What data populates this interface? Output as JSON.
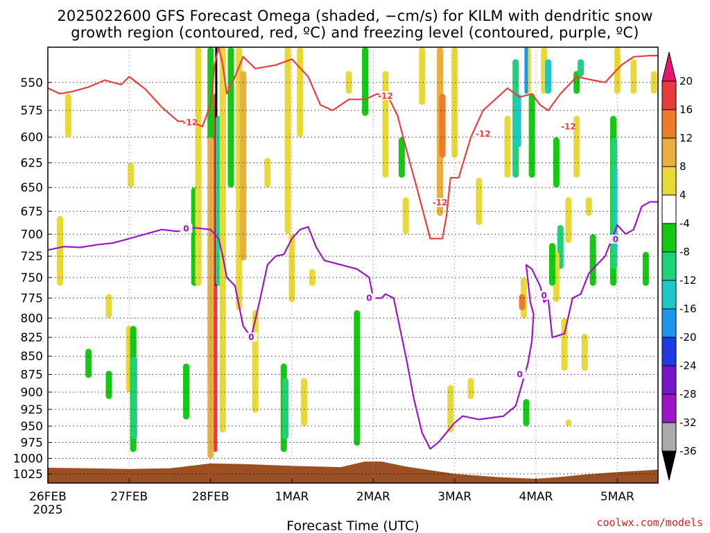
{
  "chart_data": {
    "type": "heatmap",
    "title_lines": [
      "2025022600 GFS Forecast Omega (shaded, −cm/s) for KILM with dendritic snow",
      "growth region (contoured, red, ºC) and freezing level (contoured, purple, ºC)"
    ],
    "xlabel": "Forecast Time (UTC)",
    "x_ticks": [
      "26FEB",
      "27FEB",
      "28FEB",
      "1MAR",
      "2MAR",
      "3MAR",
      "4MAR",
      "5MAR"
    ],
    "x_tick_sub": "2025",
    "y_ticks": [
      550,
      575,
      600,
      625,
      650,
      675,
      700,
      725,
      750,
      775,
      800,
      825,
      850,
      875,
      900,
      925,
      950,
      975,
      1000,
      1025
    ],
    "y_scale": "log-pressure",
    "ylim_hpa": [
      1040,
      520
    ],
    "xlim_days": [
      0,
      7.5
    ],
    "grid": true,
    "colorbar": {
      "labels": [
        "20",
        "16",
        "12",
        "8",
        "4",
        "-4",
        "-8",
        "-12",
        "-16",
        "-20",
        "-24",
        "-28",
        "-32",
        "-36"
      ],
      "colors": [
        "#e8146e",
        "#e83c3c",
        "#ec7c2a",
        "#e8b040",
        "#e8d838",
        "#ffffff",
        "#14c814",
        "#1ed27a",
        "#1ec8c8",
        "#1e96f0",
        "#1e3ce0",
        "#7814c8",
        "#9a14c8",
        "#aaaaaa",
        "#000000"
      ],
      "units": "-cm/s"
    },
    "series": [
      {
        "name": "dendritic snow growth region (-12)",
        "color": "#f03c3c",
        "points": [
          [
            0,
            555
          ],
          [
            0.15,
            560
          ],
          [
            0.3,
            558
          ],
          [
            0.5,
            554
          ],
          [
            0.7,
            548
          ],
          [
            0.9,
            552
          ],
          [
            1.0,
            545
          ],
          [
            1.2,
            556
          ],
          [
            1.4,
            572
          ],
          [
            1.6,
            585
          ],
          [
            1.75,
            585
          ],
          [
            1.9,
            590
          ],
          [
            2.0,
            570
          ],
          [
            2.05,
            535
          ],
          [
            2.1,
            520
          ],
          [
            2.15,
            535
          ],
          [
            2.2,
            560
          ],
          [
            2.3,
            545
          ],
          [
            2.4,
            528
          ],
          [
            2.55,
            538
          ],
          [
            2.8,
            535
          ],
          [
            3.0,
            530
          ],
          [
            3.2,
            545
          ],
          [
            3.35,
            570
          ],
          [
            3.5,
            575
          ],
          [
            3.7,
            565
          ],
          [
            3.9,
            565
          ],
          [
            4.05,
            560
          ],
          [
            4.2,
            565
          ],
          [
            4.3,
            580
          ],
          [
            4.4,
            610
          ],
          [
            4.55,
            655
          ],
          [
            4.7,
            705
          ],
          [
            4.85,
            705
          ],
          [
            4.9,
            680
          ],
          [
            4.95,
            640
          ],
          [
            5.05,
            640
          ],
          [
            5.2,
            600
          ],
          [
            5.35,
            575
          ],
          [
            5.5,
            565
          ],
          [
            5.65,
            555
          ],
          [
            5.8,
            563
          ],
          [
            5.95,
            560
          ],
          [
            6.05,
            570
          ],
          [
            6.15,
            575
          ],
          [
            6.3,
            560
          ],
          [
            6.5,
            545
          ],
          [
            6.7,
            548
          ],
          [
            6.85,
            550
          ],
          [
            7.05,
            535
          ],
          [
            7.2,
            528
          ],
          [
            7.4,
            527
          ],
          [
            7.5,
            527
          ]
        ],
        "labels": [
          {
            "day": 1.75,
            "hpa": 586,
            "text": "-12"
          },
          {
            "day": 4.15,
            "hpa": 562,
            "text": "-12"
          },
          {
            "day": 4.82,
            "hpa": 666,
            "text": "-12"
          },
          {
            "day": 5.35,
            "hpa": 597,
            "text": "-12"
          },
          {
            "day": 6.4,
            "hpa": 590,
            "text": "-12"
          }
        ]
      },
      {
        "name": "freezing level (0)",
        "color": "#9b14c8",
        "points": [
          [
            0,
            718
          ],
          [
            0.2,
            714
          ],
          [
            0.4,
            715
          ],
          [
            0.6,
            712
          ],
          [
            0.8,
            710
          ],
          [
            1.0,
            705
          ],
          [
            1.2,
            700
          ],
          [
            1.4,
            695
          ],
          [
            1.6,
            697
          ],
          [
            1.8,
            693
          ],
          [
            2.0,
            695
          ],
          [
            2.1,
            705
          ],
          [
            2.15,
            725
          ],
          [
            2.2,
            750
          ],
          [
            2.3,
            760
          ],
          [
            2.4,
            810
          ],
          [
            2.5,
            825
          ],
          [
            2.6,
            780
          ],
          [
            2.7,
            735
          ],
          [
            2.8,
            725
          ],
          [
            2.9,
            723
          ],
          [
            3.0,
            705
          ],
          [
            3.1,
            695
          ],
          [
            3.2,
            692
          ],
          [
            3.3,
            715
          ],
          [
            3.4,
            730
          ],
          [
            3.6,
            735
          ],
          [
            3.8,
            740
          ],
          [
            3.95,
            750
          ],
          [
            4.0,
            775
          ],
          [
            4.1,
            775
          ],
          [
            4.15,
            770
          ],
          [
            4.25,
            775
          ],
          [
            4.4,
            850
          ],
          [
            4.5,
            910
          ],
          [
            4.6,
            960
          ],
          [
            4.7,
            985
          ],
          [
            4.8,
            975
          ],
          [
            5.0,
            945
          ],
          [
            5.1,
            935
          ],
          [
            5.3,
            940
          ],
          [
            5.6,
            935
          ],
          [
            5.75,
            920
          ],
          [
            5.85,
            880
          ],
          [
            5.9,
            860
          ],
          [
            5.95,
            830
          ],
          [
            5.97,
            795
          ],
          [
            5.93,
            780
          ],
          [
            5.88,
            735
          ],
          [
            5.95,
            740
          ],
          [
            6.05,
            760
          ],
          [
            6.1,
            780
          ],
          [
            6.15,
            775
          ],
          [
            6.2,
            825
          ],
          [
            6.35,
            820
          ],
          [
            6.45,
            775
          ],
          [
            6.55,
            770
          ],
          [
            6.65,
            745
          ],
          [
            6.75,
            735
          ],
          [
            6.85,
            725
          ],
          [
            7.0,
            690
          ],
          [
            7.1,
            700
          ],
          [
            7.2,
            695
          ],
          [
            7.3,
            670
          ],
          [
            7.4,
            665
          ],
          [
            7.5,
            665
          ]
        ],
        "labels": [
          {
            "day": 1.7,
            "hpa": 694,
            "text": "0"
          },
          {
            "day": 2.5,
            "hpa": 825,
            "text": "0"
          },
          {
            "day": 3.95,
            "hpa": 775,
            "text": "0"
          },
          {
            "day": 5.8,
            "hpa": 875,
            "text": "0"
          },
          {
            "day": 6.1,
            "hpa": 772,
            "text": "0"
          },
          {
            "day": 6.98,
            "hpa": 706,
            "text": "0"
          }
        ]
      }
    ],
    "shaded_regions": [
      {
        "day": 0.25,
        "hpa": [
          560,
          600
        ],
        "v": 6
      },
      {
        "day": 0.15,
        "hpa": [
          680,
          760
        ],
        "v": 6
      },
      {
        "day": 1.02,
        "hpa": [
          625,
          650
        ],
        "v": 6
      },
      {
        "day": 0.75,
        "hpa": [
          870,
          910
        ],
        "v": -6
      },
      {
        "day": 0.75,
        "hpa": [
          770,
          800
        ],
        "v": 6
      },
      {
        "day": 1.0,
        "hpa": [
          810,
          900
        ],
        "v": 6
      },
      {
        "day": 1.05,
        "hpa": [
          810,
          990
        ],
        "v": -6
      },
      {
        "day": 1.06,
        "hpa": [
          850,
          970
        ],
        "v": -9
      },
      {
        "day": 0.5,
        "hpa": [
          840,
          880
        ],
        "v": -6
      },
      {
        "day": 1.8,
        "hpa": [
          650,
          760
        ],
        "v": -6
      },
      {
        "day": 1.85,
        "hpa": [
          520,
          760
        ],
        "v": 6
      },
      {
        "day": 1.7,
        "hpa": [
          860,
          940
        ],
        "v": -6
      },
      {
        "day": 2.0,
        "hpa": [
          520,
          610
        ],
        "v": -6
      },
      {
        "day": 2.0,
        "hpa": [
          600,
          1000
        ],
        "v": 10
      },
      {
        "day": 2.06,
        "hpa": [
          560,
          990
        ],
        "v": 18
      },
      {
        "day": 2.07,
        "hpa": [
          520,
          760
        ],
        "v": -36
      },
      {
        "day": 2.1,
        "hpa": [
          580,
          760
        ],
        "v": -10
      },
      {
        "day": 2.15,
        "hpa": [
          520,
          960
        ],
        "v": 6
      },
      {
        "day": 2.25,
        "hpa": [
          520,
          650
        ],
        "v": -6
      },
      {
        "day": 2.35,
        "hpa": [
          520,
          790
        ],
        "v": 6
      },
      {
        "day": 2.4,
        "hpa": [
          540,
          730
        ],
        "v": 9
      },
      {
        "day": 2.55,
        "hpa": [
          790,
          930
        ],
        "v": 6
      },
      {
        "day": 2.7,
        "hpa": [
          620,
          650
        ],
        "v": 6
      },
      {
        "day": 3.0,
        "hpa": [
          700,
          780
        ],
        "v": 6
      },
      {
        "day": 3.25,
        "hpa": [
          740,
          760
        ],
        "v": 6
      },
      {
        "day": 2.95,
        "hpa": [
          520,
          700
        ],
        "v": 6
      },
      {
        "day": 2.9,
        "hpa": [
          860,
          990
        ],
        "v": -6
      },
      {
        "day": 2.92,
        "hpa": [
          880,
          970
        ],
        "v": -11
      },
      {
        "day": 3.1,
        "hpa": [
          520,
          600
        ],
        "v": 6
      },
      {
        "day": 3.15,
        "hpa": [
          880,
          950
        ],
        "v": 6
      },
      {
        "day": 3.7,
        "hpa": [
          540,
          560
        ],
        "v": 6
      },
      {
        "day": 3.8,
        "hpa": [
          790,
          980
        ],
        "v": -6
      },
      {
        "day": 3.9,
        "hpa": [
          520,
          580
        ],
        "v": -6
      },
      {
        "day": 4.15,
        "hpa": [
          540,
          640
        ],
        "v": 6
      },
      {
        "day": 4.4,
        "hpa": [
          660,
          700
        ],
        "v": 6
      },
      {
        "day": 4.35,
        "hpa": [
          600,
          640
        ],
        "v": -6
      },
      {
        "day": 4.6,
        "hpa": [
          520,
          570
        ],
        "v": 6
      },
      {
        "day": 4.82,
        "hpa": [
          520,
          680
        ],
        "v": 8
      },
      {
        "day": 4.85,
        "hpa": [
          560,
          620
        ],
        "v": 12
      },
      {
        "day": 5.0,
        "hpa": [
          520,
          620
        ],
        "v": 6
      },
      {
        "day": 4.95,
        "hpa": [
          890,
          960
        ],
        "v": 6
      },
      {
        "day": 5.2,
        "hpa": [
          880,
          910
        ],
        "v": 6
      },
      {
        "day": 5.3,
        "hpa": [
          640,
          690
        ],
        "v": 6
      },
      {
        "day": 5.65,
        "hpa": [
          580,
          640
        ],
        "v": 6
      },
      {
        "day": 5.9,
        "hpa": [
          520,
          560
        ],
        "v": 6
      },
      {
        "day": 5.75,
        "hpa": [
          530,
          640
        ],
        "v": -9
      },
      {
        "day": 5.78,
        "hpa": [
          560,
          610
        ],
        "v": -13
      },
      {
        "day": 5.88,
        "hpa": [
          520,
          560
        ],
        "v": -16
      },
      {
        "day": 5.95,
        "hpa": [
          560,
          640
        ],
        "v": -6
      },
      {
        "day": 5.85,
        "hpa": [
          750,
          800
        ],
        "v": 6
      },
      {
        "day": 5.83,
        "hpa": [
          770,
          790
        ],
        "v": 12
      },
      {
        "day": 5.88,
        "hpa": [
          910,
          950
        ],
        "v": -6
      },
      {
        "day": 6.1,
        "hpa": [
          520,
          560
        ],
        "v": 6
      },
      {
        "day": 6.15,
        "hpa": [
          530,
          560
        ],
        "v": -13
      },
      {
        "day": 6.25,
        "hpa": [
          600,
          650
        ],
        "v": -6
      },
      {
        "day": 6.3,
        "hpa": [
          690,
          740
        ],
        "v": -9
      },
      {
        "day": 6.25,
        "hpa": [
          720,
          780
        ],
        "v": 6
      },
      {
        "day": 6.2,
        "hpa": [
          710,
          760
        ],
        "v": -6
      },
      {
        "day": 6.4,
        "hpa": [
          660,
          710
        ],
        "v": 6
      },
      {
        "day": 6.5,
        "hpa": [
          540,
          560
        ],
        "v": -6
      },
      {
        "day": 6.5,
        "hpa": [
          580,
          640
        ],
        "v": 6
      },
      {
        "day": 6.35,
        "hpa": [
          800,
          870
        ],
        "v": 6
      },
      {
        "day": 6.4,
        "hpa": [
          940,
          950
        ],
        "v": 6
      },
      {
        "day": 6.55,
        "hpa": [
          530,
          545
        ],
        "v": -9
      },
      {
        "day": 6.65,
        "hpa": [
          660,
          680
        ],
        "v": 6
      },
      {
        "day": 6.6,
        "hpa": [
          820,
          870
        ],
        "v": 6
      },
      {
        "day": 6.7,
        "hpa": [
          700,
          760
        ],
        "v": -6
      },
      {
        "day": 6.95,
        "hpa": [
          580,
          760
        ],
        "v": -6
      },
      {
        "day": 6.96,
        "hpa": [
          600,
          740
        ],
        "v": -11
      },
      {
        "day": 6.98,
        "hpa": [
          630,
          720
        ],
        "v": -15
      },
      {
        "day": 7.0,
        "hpa": [
          520,
          560
        ],
        "v": 6
      },
      {
        "day": 7.2,
        "hpa": [
          530,
          560
        ],
        "v": 6
      },
      {
        "day": 7.35,
        "hpa": [
          720,
          760
        ],
        "v": -6
      },
      {
        "day": 7.45,
        "hpa": [
          540,
          560
        ],
        "v": 6
      }
    ],
    "ground_terrain_hpa": [
      [
        0,
        1015
      ],
      [
        0.5,
        1016
      ],
      [
        1.0,
        1017
      ],
      [
        1.5,
        1016
      ],
      [
        2.0,
        1008
      ],
      [
        2.4,
        1009
      ],
      [
        3.0,
        1012
      ],
      [
        3.6,
        1014
      ],
      [
        3.9,
        1005
      ],
      [
        4.1,
        1005
      ],
      [
        4.4,
        1013
      ],
      [
        5.0,
        1025
      ],
      [
        5.5,
        1030
      ],
      [
        6.0,
        1033
      ],
      [
        6.3,
        1030
      ],
      [
        6.6,
        1026
      ],
      [
        7.0,
        1022
      ],
      [
        7.5,
        1018
      ]
    ]
  },
  "credit": "coolwx.com/models"
}
